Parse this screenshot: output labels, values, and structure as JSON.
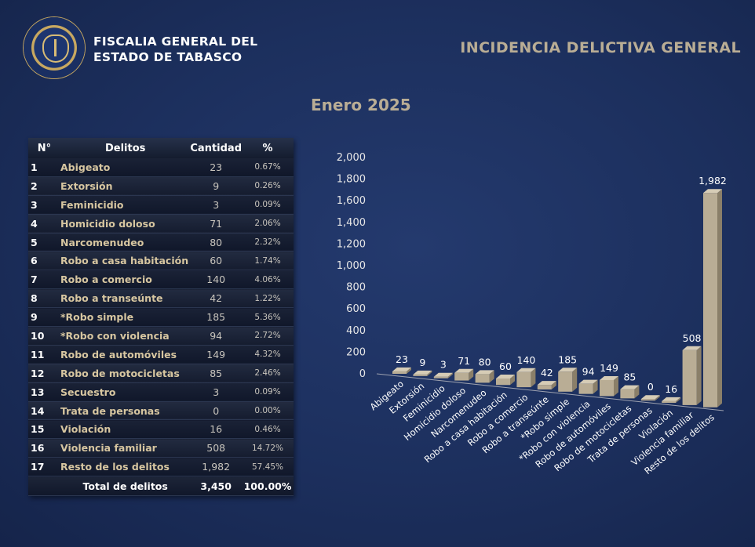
{
  "header": {
    "org_line1": "FISCALIA GENERAL DEL",
    "org_line2": "ESTADO DE TABASCO",
    "title": "INCIDENCIA DELICTIVA GENERAL",
    "month": "Enero 2025"
  },
  "table": {
    "headers": [
      "N°",
      "Delitos",
      "Cantidad",
      "%"
    ],
    "rows": [
      {
        "n": "1",
        "name": "Abigeato",
        "qty": "23",
        "pct": "0.67%"
      },
      {
        "n": "2",
        "name": "Extorsión",
        "qty": "9",
        "pct": "0.26%"
      },
      {
        "n": "3",
        "name": "Feminicidio",
        "qty": "3",
        "pct": "0.09%"
      },
      {
        "n": "4",
        "name": "Homicidio doloso",
        "qty": "71",
        "pct": "2.06%"
      },
      {
        "n": "5",
        "name": "Narcomenudeo",
        "qty": "80",
        "pct": "2.32%"
      },
      {
        "n": "6",
        "name": "Robo a casa habitación",
        "qty": "60",
        "pct": "1.74%"
      },
      {
        "n": "7",
        "name": "Robo a comercio",
        "qty": "140",
        "pct": "4.06%"
      },
      {
        "n": "8",
        "name": "Robo a transeúnte",
        "qty": "42",
        "pct": "1.22%"
      },
      {
        "n": "9",
        "name": "*Robo simple",
        "qty": "185",
        "pct": "5.36%"
      },
      {
        "n": "10",
        "name": "*Robo con violencia",
        "qty": "94",
        "pct": "2.72%"
      },
      {
        "n": "11",
        "name": "Robo de automóviles",
        "qty": "149",
        "pct": "4.32%"
      },
      {
        "n": "12",
        "name": "Robo de motocicletas",
        "qty": "85",
        "pct": "2.46%"
      },
      {
        "n": "13",
        "name": "Secuestro",
        "qty": "3",
        "pct": "0.09%"
      },
      {
        "n": "14",
        "name": "Trata de personas",
        "qty": "0",
        "pct": "0.00%"
      },
      {
        "n": "15",
        "name": "Violación",
        "qty": "16",
        "pct": "0.46%"
      },
      {
        "n": "16",
        "name": "Violencia familiar",
        "qty": "508",
        "pct": "14.72%"
      },
      {
        "n": "17",
        "name": "Resto de los delitos",
        "qty": "1,982",
        "pct": "57.45%"
      }
    ],
    "total_label": "Total de delitos",
    "total_qty": "3,450",
    "total_pct": "100.00%"
  },
  "chart_data": {
    "type": "bar",
    "categories": [
      "Abigeato",
      "Extorsión",
      "Feminicidio",
      "Homicidio doloso",
      "Narcomenudeo",
      "Robo a casa habitación",
      "Robo a comercio",
      "Robo a transeúnte",
      "*Robo simple",
      "*Robo con violencia",
      "Robo de automóviles",
      "Robo de motocicletas",
      "Trata de personas",
      "Violación",
      "Violencia familiar",
      "Resto de los delitos"
    ],
    "values": [
      23,
      9,
      3,
      71,
      80,
      60,
      140,
      42,
      185,
      94,
      149,
      85,
      0,
      16,
      508,
      1982
    ],
    "value_labels": [
      "23",
      "9",
      "3",
      "71",
      "80",
      "60",
      "140",
      "42",
      "185",
      "94",
      "149",
      "85",
      "0",
      "16",
      "508",
      "1,982"
    ],
    "y_ticks": [
      "0",
      "200",
      "400",
      "600",
      "800",
      "1,000",
      "1,200",
      "1,400",
      "1,600",
      "1,800",
      "2,000"
    ],
    "ylim": [
      0,
      2000
    ],
    "bar_color": "#b9ad95",
    "grid": false,
    "legend": "none"
  }
}
